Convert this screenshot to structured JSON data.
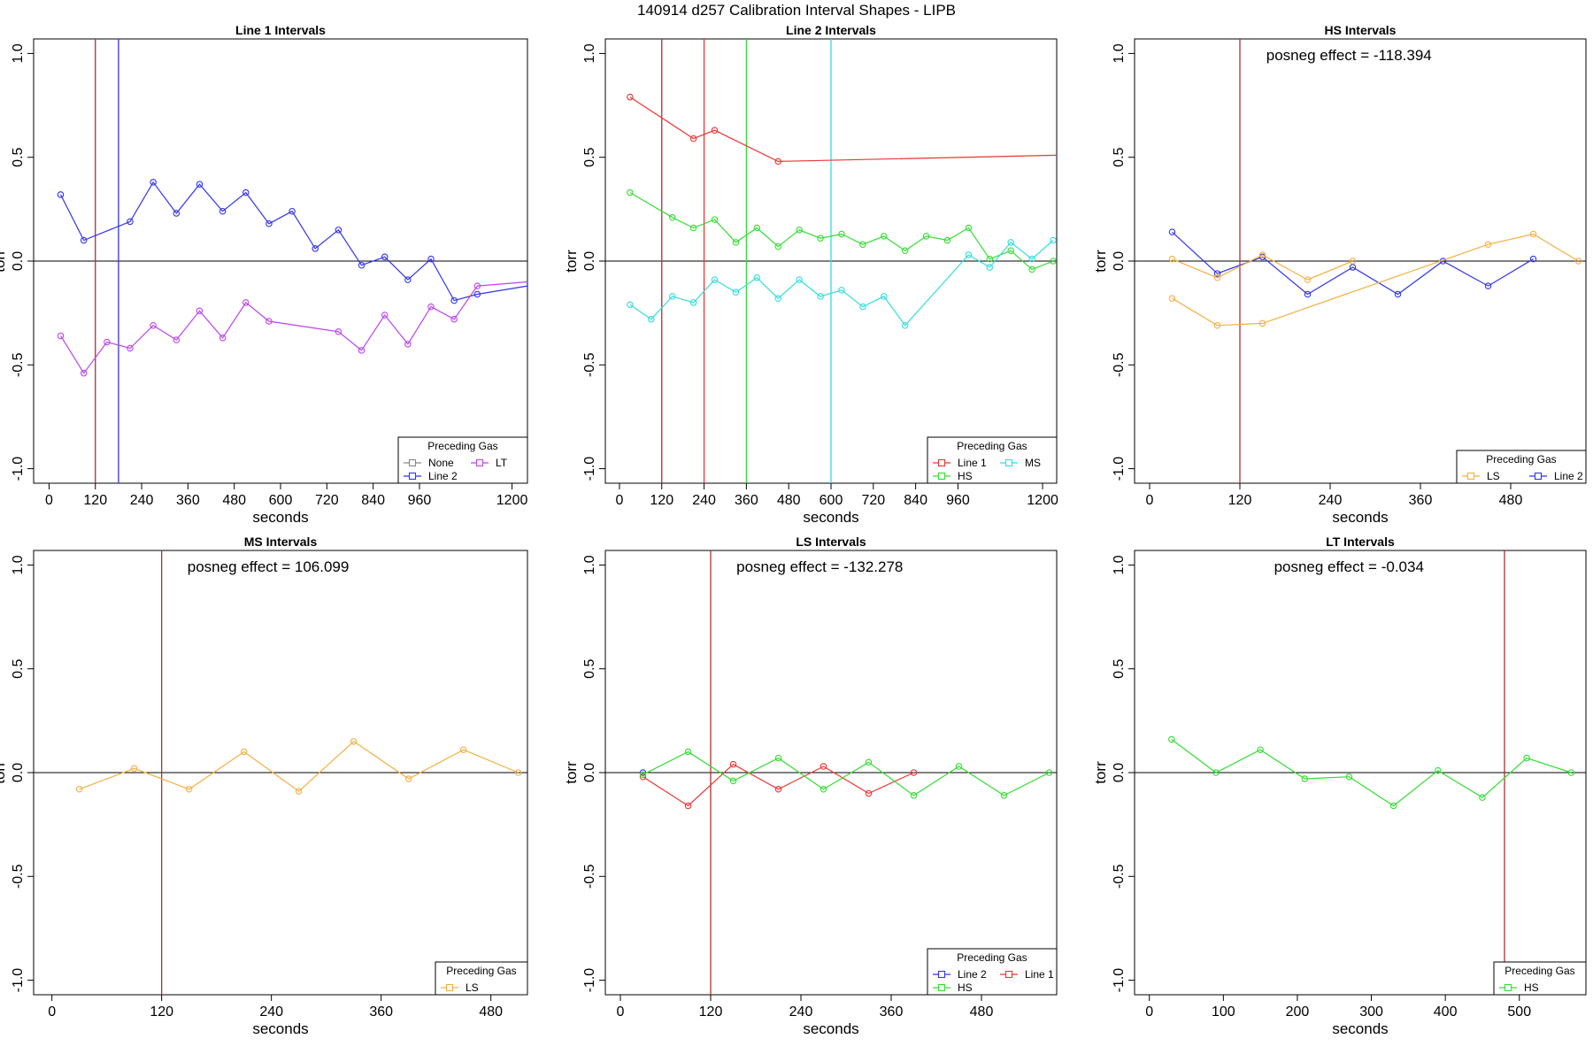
{
  "figure": {
    "title": "140914   d257   Calibration Interval Shapes - LIPB"
  },
  "chart_data": [
    {
      "type": "line",
      "title": "Line 1 Intervals",
      "xlabel": "seconds",
      "ylabel": "torr",
      "xlim": [
        -40,
        1240
      ],
      "ylim": [
        -1.07,
        1.07
      ],
      "xticks": [
        0,
        120,
        240,
        360,
        480,
        600,
        720,
        840,
        960,
        1200
      ],
      "yticks": [
        -1.0,
        -0.5,
        0.0,
        0.5,
        1.0
      ],
      "ytick_labels": [
        "-1.0",
        "-0.5",
        "0.0",
        "0.5",
        "1.0"
      ],
      "vlines": [
        {
          "x": 120,
          "color": "#b03030"
        },
        {
          "x": 180,
          "color": "#3333ee"
        }
      ],
      "annotation": "",
      "legend": {
        "title": "Preceding Gas",
        "position": "bottom-right",
        "columns": 2,
        "entries": [
          {
            "label": "None",
            "color": "#888888"
          },
          {
            "label": "LT",
            "color": "#bb44ee"
          },
          {
            "label": "Line 2",
            "color": "#3333ee"
          }
        ]
      },
      "series": [
        {
          "color": "#3333ee",
          "x": [
            30,
            90,
            210,
            270,
            330,
            390,
            450,
            510,
            570,
            630,
            690,
            750,
            810,
            870,
            930,
            990,
            1050,
            1110,
            1240
          ],
          "y": [
            0.32,
            0.1,
            0.19,
            0.38,
            0.23,
            0.37,
            0.24,
            0.33,
            0.18,
            0.24,
            0.06,
            0.15,
            -0.02,
            0.02,
            -0.09,
            0.01,
            -0.19,
            -0.16,
            -0.12
          ],
          "markers": [
            true,
            true,
            true,
            true,
            true,
            true,
            true,
            true,
            true,
            true,
            true,
            true,
            true,
            true,
            true,
            true,
            true,
            true,
            false
          ]
        },
        {
          "color": "#bb44ee",
          "x": [
            30,
            90,
            150,
            210,
            270,
            330,
            390,
            450,
            510,
            570,
            750,
            810,
            870,
            930,
            990,
            1050,
            1110,
            1240
          ],
          "y": [
            -0.36,
            -0.54,
            -0.39,
            -0.42,
            -0.31,
            -0.38,
            -0.24,
            -0.37,
            -0.2,
            -0.29,
            -0.34,
            -0.43,
            -0.26,
            -0.4,
            -0.22,
            -0.28,
            -0.12,
            -0.1
          ],
          "markers": [
            true,
            true,
            true,
            true,
            true,
            true,
            true,
            true,
            true,
            true,
            true,
            true,
            true,
            true,
            true,
            true,
            true,
            false
          ]
        }
      ]
    },
    {
      "type": "line",
      "title": "Line 2 Intervals",
      "xlabel": "seconds",
      "ylabel": "torr",
      "xlim": [
        -40,
        1240
      ],
      "ylim": [
        -1.07,
        1.07
      ],
      "xticks": [
        0,
        120,
        240,
        360,
        480,
        600,
        720,
        840,
        960,
        1200
      ],
      "yticks": [
        -1.0,
        -0.5,
        0.0,
        0.5,
        1.0
      ],
      "ytick_labels": [
        "-1.0",
        "-0.5",
        "0.0",
        "0.5",
        "1.0"
      ],
      "vlines": [
        {
          "x": 120,
          "color": "#b03030"
        },
        {
          "x": 240,
          "color": "#ee3333"
        },
        {
          "x": 360,
          "color": "#33dd33"
        },
        {
          "x": 600,
          "color": "#33dddd"
        }
      ],
      "annotation": "",
      "legend": {
        "title": "Preceding Gas",
        "position": "bottom-right",
        "columns": 2,
        "entries": [
          {
            "label": "Line 1",
            "color": "#ee3333"
          },
          {
            "label": "MS",
            "color": "#33dddd"
          },
          {
            "label": "HS",
            "color": "#33dd33"
          }
        ]
      },
      "series": [
        {
          "color": "#ee3333",
          "x": [
            30,
            210,
            270,
            450,
            1240
          ],
          "y": [
            0.79,
            0.59,
            0.63,
            0.48,
            0.51
          ],
          "markers": [
            true,
            true,
            true,
            true,
            false
          ]
        },
        {
          "color": "#33dd33",
          "x": [
            30,
            150,
            210,
            270,
            330,
            390,
            450,
            510,
            570,
            630,
            690,
            750,
            810,
            870,
            930,
            990,
            1050,
            1110,
            1170,
            1230
          ],
          "y": [
            0.33,
            0.21,
            0.16,
            0.2,
            0.09,
            0.16,
            0.07,
            0.15,
            0.11,
            0.13,
            0.08,
            0.12,
            0.05,
            0.12,
            0.1,
            0.16,
            0.01,
            0.05,
            -0.04,
            0.0
          ]
        },
        {
          "color": "#33dddd",
          "x": [
            30,
            90,
            150,
            210,
            270,
            330,
            390,
            450,
            510,
            570,
            630,
            690,
            750,
            810,
            990,
            1050,
            1110,
            1170,
            1230
          ],
          "y": [
            -0.21,
            -0.28,
            -0.17,
            -0.2,
            -0.09,
            -0.15,
            -0.08,
            -0.18,
            -0.09,
            -0.17,
            -0.14,
            -0.22,
            -0.17,
            -0.31,
            0.03,
            -0.03,
            0.09,
            0.01,
            0.1
          ]
        }
      ]
    },
    {
      "type": "line",
      "title": "HS Intervals",
      "xlabel": "seconds",
      "ylabel": "torr",
      "xlim": [
        -20,
        580
      ],
      "ylim": [
        -1.07,
        1.07
      ],
      "xticks": [
        0,
        120,
        240,
        360,
        480
      ],
      "yticks": [
        -1.0,
        -0.5,
        0.0,
        0.5,
        1.0
      ],
      "ytick_labels": [
        "-1.0",
        "-0.5",
        "0.0",
        "0.5",
        "1.0"
      ],
      "vlines": [
        {
          "x": 120,
          "color": "#b03030"
        }
      ],
      "annotation": "posneg effect = -118.394",
      "legend": {
        "title": "Preceding Gas",
        "position": "bottom-right",
        "columns": 2,
        "entries": [
          {
            "label": "LS",
            "color": "#f4b040"
          },
          {
            "label": "Line 2",
            "color": "#3333ee"
          }
        ]
      },
      "series": [
        {
          "color": "#3333ee",
          "x": [
            30,
            90,
            150,
            210,
            270,
            330,
            390,
            450,
            510
          ],
          "y": [
            0.14,
            -0.06,
            0.02,
            -0.16,
            -0.03,
            -0.16,
            0.0,
            -0.12,
            0.01
          ]
        },
        {
          "color": "#f4b040",
          "x": [
            30,
            90,
            150,
            210,
            270
          ],
          "y": [
            0.01,
            -0.08,
            0.03,
            -0.09,
            0.0
          ]
        },
        {
          "color": "#f4b040",
          "x": [
            30,
            90,
            150,
            450,
            510,
            570
          ],
          "y": [
            -0.18,
            -0.31,
            -0.3,
            0.08,
            0.13,
            0.0
          ]
        }
      ]
    },
    {
      "type": "line",
      "title": "MS Intervals",
      "xlabel": "seconds",
      "ylabel": "torr",
      "xlim": [
        -20,
        520
      ],
      "ylim": [
        -1.07,
        1.07
      ],
      "xticks": [
        0,
        120,
        240,
        360,
        480
      ],
      "yticks": [
        -1.0,
        -0.5,
        0.0,
        0.5,
        1.0
      ],
      "ytick_labels": [
        "-1.0",
        "-0.5",
        "0.0",
        "0.5",
        "1.0"
      ],
      "vlines": [
        {
          "x": 120,
          "color": "#b03030"
        }
      ],
      "annotation": "posneg effect = 106.099",
      "legend": {
        "title": "Preceding Gas",
        "position": "bottom-right",
        "columns": 1,
        "entries": [
          {
            "label": "LS",
            "color": "#f4b040"
          }
        ]
      },
      "series": [
        {
          "color": "#f4b040",
          "x": [
            30,
            90,
            150,
            210,
            270,
            330,
            390,
            450,
            510
          ],
          "y": [
            -0.08,
            0.02,
            -0.08,
            0.1,
            -0.09,
            0.15,
            -0.03,
            0.11,
            0.0
          ]
        }
      ]
    },
    {
      "type": "line",
      "title": "LS Intervals",
      "xlabel": "seconds",
      "ylabel": "torr",
      "xlim": [
        -20,
        580
      ],
      "ylim": [
        -1.07,
        1.07
      ],
      "xticks": [
        0,
        120,
        240,
        360,
        480
      ],
      "yticks": [
        -1.0,
        -0.5,
        0.0,
        0.5,
        1.0
      ],
      "ytick_labels": [
        "-1.0",
        "-0.5",
        "0.0",
        "0.5",
        "1.0"
      ],
      "vlines": [
        {
          "x": 120,
          "color": "#b03030"
        }
      ],
      "annotation": "posneg effect = -132.278",
      "legend": {
        "title": "Preceding Gas",
        "position": "bottom-right",
        "columns": 2,
        "entries": [
          {
            "label": "Line 2",
            "color": "#3333ee"
          },
          {
            "label": "Line 1",
            "color": "#ee3333"
          },
          {
            "label": "HS",
            "color": "#33dd33"
          }
        ]
      },
      "series": [
        {
          "color": "#3333ee",
          "x": [
            30
          ],
          "y": [
            0.0
          ]
        },
        {
          "color": "#ee3333",
          "x": [
            30,
            90,
            150,
            210,
            270,
            330,
            390
          ],
          "y": [
            -0.02,
            -0.16,
            0.04,
            -0.08,
            0.03,
            -0.1,
            0.0
          ]
        },
        {
          "color": "#33dd33",
          "x": [
            30,
            90,
            150,
            210,
            270,
            330,
            390,
            450,
            510,
            570
          ],
          "y": [
            -0.01,
            0.1,
            -0.04,
            0.07,
            -0.08,
            0.05,
            -0.11,
            0.03,
            -0.11,
            0.0
          ]
        }
      ]
    },
    {
      "type": "line",
      "title": "LT Intervals",
      "xlabel": "seconds",
      "ylabel": "torr",
      "xlim": [
        -20,
        590
      ],
      "ylim": [
        -1.07,
        1.07
      ],
      "xticks": [
        0,
        100,
        200,
        300,
        400,
        500
      ],
      "yticks": [
        -1.0,
        -0.5,
        0.0,
        0.5,
        1.0
      ],
      "ytick_labels": [
        "-1.0",
        "-0.5",
        "0.0",
        "0.5",
        "1.0"
      ],
      "vlines": [
        {
          "x": 480,
          "color": "#b03030"
        }
      ],
      "annotation": "posneg effect = -0.034",
      "legend": {
        "title": "Preceding Gas",
        "position": "bottom-right",
        "columns": 1,
        "entries": [
          {
            "label": "HS",
            "color": "#33dd33"
          }
        ]
      },
      "series": [
        {
          "color": "#33dd33",
          "x": [
            30,
            90,
            150,
            210,
            270,
            330,
            390,
            450,
            510,
            570
          ],
          "y": [
            0.16,
            0.0,
            0.11,
            -0.03,
            -0.02,
            -0.16,
            0.01,
            -0.12,
            0.07,
            0.0
          ]
        }
      ]
    }
  ]
}
